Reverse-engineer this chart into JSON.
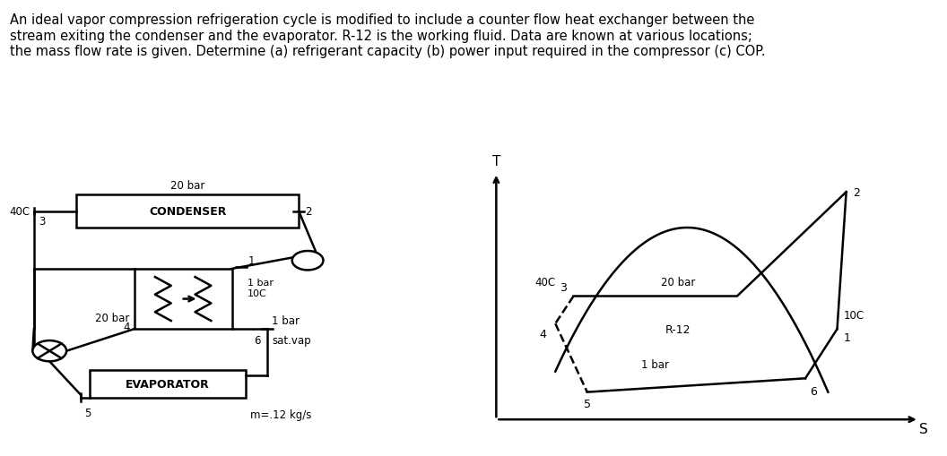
{
  "header_text": "An ideal vapor compression refrigeration cycle is modified to include a counter flow heat exchanger between the\nstream exiting the condenser and the evaporator. R-12 is the working fluid. Data are known at various locations;\nthe mass flow rate is given. Determine (a) refrigerant capacity (b) power input required in the compressor (c) COP.",
  "header_fontsize": 10.5,
  "bg_color": "#ffffff",
  "diagram": {
    "condenser_label": "CONDENSER",
    "evaporator_label": "EVAPORATOR",
    "condenser_pressure": "20 bar",
    "node2_labels": [
      "1 bar",
      "10C"
    ],
    "node3_label": "40C",
    "node3_num": "3",
    "node4_label": "20 bar",
    "node4_num": "4",
    "node6_labels": [
      "1 bar",
      "sat.vap"
    ],
    "node6_num": "6",
    "node5_num": "5",
    "node1_num": "1",
    "node2_num": "2",
    "mass_flow": "m=.12 kg/s"
  },
  "ts_diagram": {
    "title": "T",
    "xlabel": "S",
    "label_20bar": "20 bar",
    "label_1bar": "1 bar",
    "label_R12": "R-12",
    "label_40C": "40C",
    "label_10C": "10C",
    "node_labels": [
      "2",
      "3",
      "4",
      "5",
      "6",
      "1"
    ],
    "dome_color": "#000000",
    "cycle_color": "#000000"
  }
}
